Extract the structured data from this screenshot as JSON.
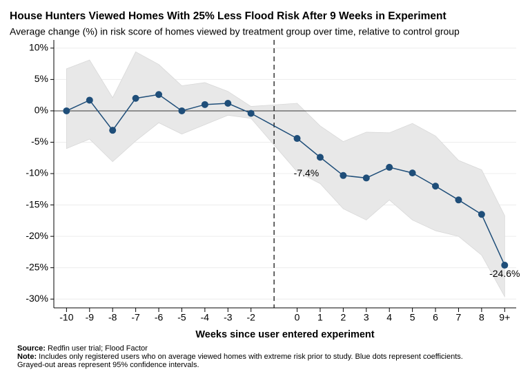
{
  "chart_data": {
    "type": "line",
    "title": "House Hunters Viewed Homes With 25% Less Flood Risk After 9 Weeks in Experiment",
    "subtitle": "Average change (%) in risk score of homes viewed by treatment group over time, relative to control group",
    "x_label": "Weeks since user entered experiment",
    "x": [
      -10,
      -9,
      -8,
      -7,
      -6,
      -5,
      -4,
      -3,
      -2,
      0,
      1,
      2,
      3,
      4,
      5,
      6,
      7,
      8,
      9
    ],
    "values": [
      0.0,
      1.7,
      -3.1,
      2.0,
      2.6,
      0.0,
      1.0,
      1.2,
      -0.4,
      -4.4,
      -7.4,
      -10.3,
      -10.7,
      -9.0,
      -9.9,
      -12.0,
      -14.2,
      -16.5,
      -24.6
    ],
    "value_labels": [
      null,
      null,
      null,
      null,
      null,
      null,
      null,
      null,
      null,
      null,
      "-7.4%",
      null,
      null,
      null,
      null,
      null,
      null,
      null,
      "-24.6%"
    ],
    "upper": [
      6.7,
      8.1,
      2.1,
      9.4,
      7.4,
      4.0,
      4.5,
      3.1,
      0.7,
      1.2,
      -2.4,
      -4.9,
      -3.4,
      -3.5,
      -2.0,
      -4.0,
      -7.9,
      -9.4,
      -16.7
    ],
    "lower": [
      -6.0,
      -4.5,
      -8.1,
      -4.8,
      -1.9,
      -3.7,
      -2.2,
      -0.7,
      -1.2,
      -9.7,
      -11.6,
      -15.6,
      -17.4,
      -14.2,
      -17.4,
      -19.1,
      -20.0,
      -23.0,
      -29.6
    ],
    "color": "#1f4e79",
    "band_color": "#e8e8e8",
    "vline": -1,
    "xlim": [
      -10.55,
      9.5
    ],
    "xticks": [
      -10,
      -9,
      -8,
      -7,
      -6,
      -5,
      -4,
      -3,
      -2,
      0,
      1,
      2,
      3,
      4,
      5,
      6,
      7,
      8,
      {
        "value": 9,
        "label": "9+"
      }
    ],
    "ylim": [
      -31.4,
      11.3
    ],
    "yticks": [
      {
        "value": 10,
        "label": "10%"
      },
      {
        "value": 5,
        "label": "5%"
      },
      {
        "value": 0,
        "label": "0%"
      },
      {
        "value": -5,
        "label": "-5%"
      },
      {
        "value": -10,
        "label": "-10%"
      },
      {
        "value": -15,
        "label": "-15%"
      },
      {
        "value": -20,
        "label": "-20%"
      },
      {
        "value": -25,
        "label": "-25%"
      },
      {
        "value": -30,
        "label": "-30%"
      }
    ],
    "grid": true,
    "source_label": "Source:",
    "source": "Redfin user trial; Flood Factor",
    "note_label": "Note:",
    "note": [
      "Includes only registered users who on average viewed homes with extreme risk prior to study. Blue dots represent coefficients.",
      "Grayed-out areas represent 95% confidence intervals."
    ]
  }
}
